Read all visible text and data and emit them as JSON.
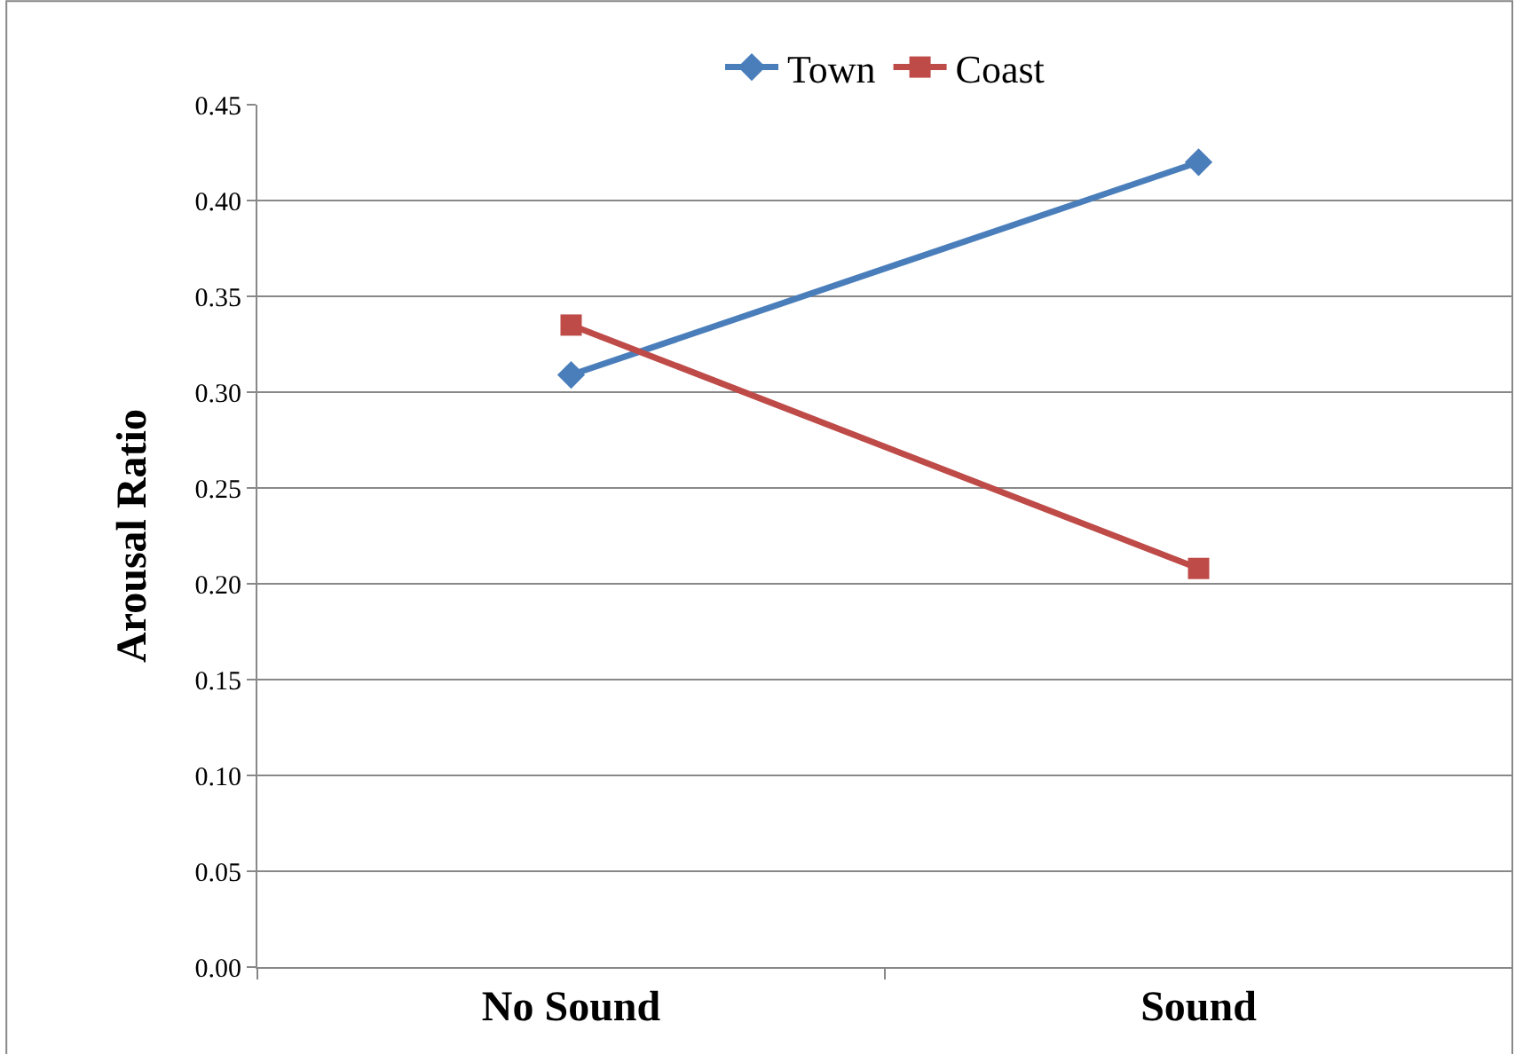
{
  "chart_data": {
    "type": "line",
    "ylabel": "Arousal Ratio",
    "categories": [
      "No Sound",
      "Sound"
    ],
    "series": [
      {
        "name": "Town",
        "color": "#4a7ebb",
        "marker": "diamond",
        "values": [
          0.309,
          0.42
        ]
      },
      {
        "name": "Coast",
        "color": "#be4b48",
        "marker": "square",
        "values": [
          0.335,
          0.208
        ]
      }
    ],
    "ylim": [
      0,
      0.45
    ],
    "yticks": [
      {
        "value": 0,
        "label": "0.00"
      },
      {
        "value": 0.05,
        "label": "0.05"
      },
      {
        "value": 0.1,
        "label": "0.10"
      },
      {
        "value": 0.15,
        "label": "0.15"
      },
      {
        "value": 0.2,
        "label": "0.20"
      },
      {
        "value": 0.25,
        "label": "0.25"
      },
      {
        "value": 0.3,
        "label": "0.30"
      },
      {
        "value": 0.35,
        "label": "0.35"
      },
      {
        "value": 0.4,
        "label": "0.40"
      },
      {
        "value": 0.45,
        "label": "0.45"
      }
    ],
    "grid": "y",
    "legend": "top",
    "line_style": "solid"
  }
}
